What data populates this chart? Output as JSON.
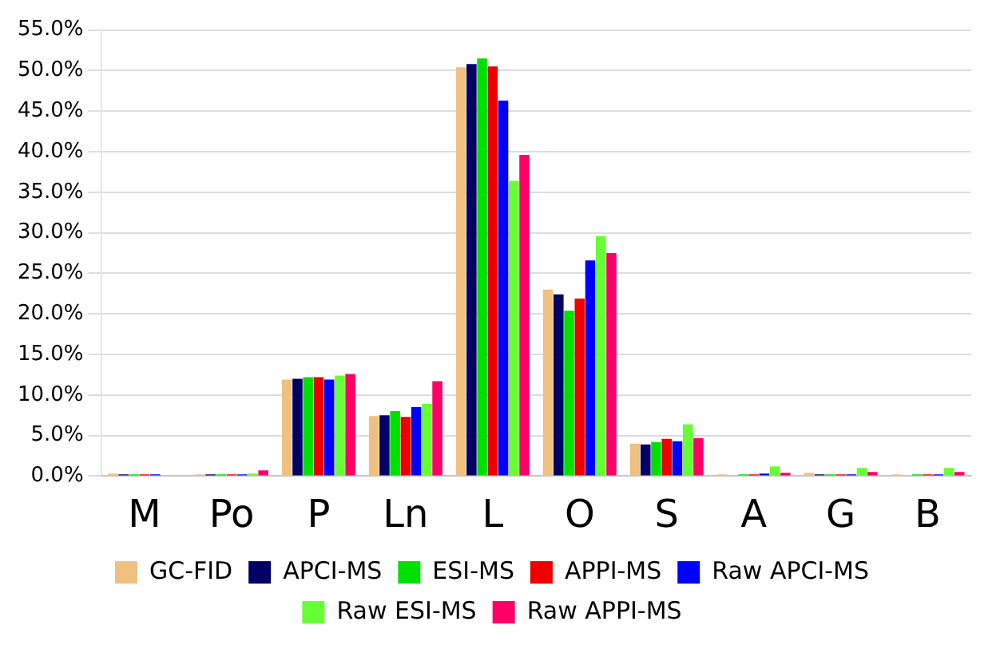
{
  "chart_data": {
    "type": "bar",
    "categories": [
      "M",
      "Po",
      "P",
      "Ln",
      "L",
      "O",
      "S",
      "A",
      "G",
      "B"
    ],
    "series": [
      {
        "name": "GC-FID",
        "color": "#f0c080",
        "values": [
          0.3,
          0.2,
          11.9,
          7.4,
          50.4,
          23.0,
          4.0,
          0.2,
          0.4,
          0.2
        ]
      },
      {
        "name": "APCI-MS",
        "color": "#000066",
        "values": [
          0.2,
          0.2,
          12.0,
          7.5,
          50.8,
          22.4,
          3.9,
          null,
          0.2,
          null
        ]
      },
      {
        "name": "ESI-MS",
        "color": "#00e000",
        "values": [
          0.2,
          0.2,
          12.2,
          8.0,
          51.5,
          20.4,
          4.2,
          0.2,
          0.2,
          0.2
        ]
      },
      {
        "name": "APPI-MS",
        "color": "#ee0000",
        "values": [
          0.2,
          0.2,
          12.2,
          7.3,
          50.5,
          21.9,
          4.6,
          0.2,
          0.2,
          0.2
        ]
      },
      {
        "name": "Raw APCI-MS",
        "color": "#0000ff",
        "values": [
          0.2,
          0.2,
          11.9,
          8.5,
          46.3,
          26.6,
          4.3,
          0.3,
          0.2,
          0.2
        ]
      },
      {
        "name": "Raw ESI-MS",
        "color": "#66ff33",
        "values": [
          null,
          0.3,
          12.4,
          8.9,
          36.4,
          29.6,
          6.4,
          1.2,
          1.0,
          1.0
        ]
      },
      {
        "name": "Raw APPI-MS",
        "color": "#ff0066",
        "values": [
          null,
          0.7,
          12.6,
          11.7,
          39.6,
          27.5,
          4.7,
          0.4,
          0.5,
          0.5
        ]
      }
    ],
    "ylim": [
      0,
      55
    ],
    "yticks": [
      {
        "value": 0,
        "label": "0.0%"
      },
      {
        "value": 5,
        "label": "5.0%"
      },
      {
        "value": 10,
        "label": "10.0%"
      },
      {
        "value": 15,
        "label": "15.0%"
      },
      {
        "value": 20,
        "label": "20.0%"
      },
      {
        "value": 25,
        "label": "25.0%"
      },
      {
        "value": 30,
        "label": "30.0%"
      },
      {
        "value": 35,
        "label": "35.0%"
      },
      {
        "value": 40,
        "label": "40.0%"
      },
      {
        "value": 45,
        "label": "45.0%"
      },
      {
        "value": 50,
        "label": "50.0%"
      },
      {
        "value": 55,
        "label": "55.0%"
      }
    ],
    "grid": "y",
    "legend": "bottom"
  }
}
